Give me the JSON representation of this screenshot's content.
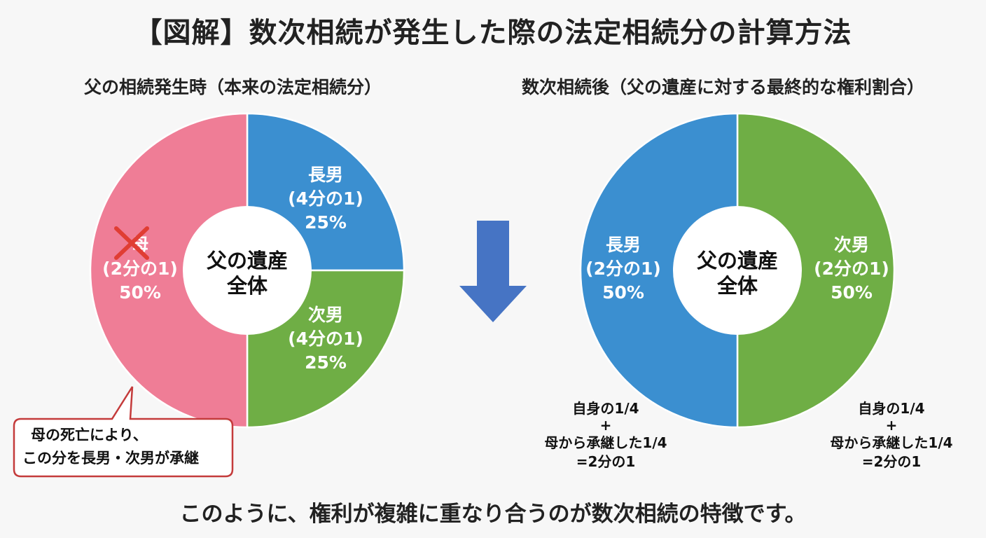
{
  "page": {
    "title": "【図解】数次相続が発生した際の法定相続分の計算方法",
    "footer": "このように、権利が複雑に重なり合うのが数次相続の特徴です。"
  },
  "colors": {
    "pink": "#ef7d96",
    "blue": "#3b8fd0",
    "green": "#6fae45",
    "arrow": "#4674c4",
    "cross": "#e03d33",
    "callout_border": "#c43b3b"
  },
  "chart_data": [
    {
      "type": "pie",
      "title": "父の相続発生時（本来の法定相続分）",
      "center_label": [
        "父の遺産",
        "全体"
      ],
      "slices": [
        {
          "name": "長男",
          "fraction_text": "(4分の1)",
          "percent_text": "25%",
          "value": 25,
          "color": "#3b8fd0"
        },
        {
          "name": "次男",
          "fraction_text": "(4分の1)",
          "percent_text": "25%",
          "value": 25,
          "color": "#6fae45"
        },
        {
          "name": "母",
          "fraction_text": "(2分の1)",
          "percent_text": "50%",
          "value": 50,
          "color": "#ef7d96",
          "crossed_out": true
        }
      ],
      "callout": [
        "母の死亡により、",
        "この分を長男・次男が承継"
      ]
    },
    {
      "type": "pie",
      "title": "数次相続後（父の遺産に対する最終的な権利割合）",
      "center_label": [
        "父の遺産",
        "全体"
      ],
      "slices": [
        {
          "name": "次男",
          "fraction_text": "(2分の1)",
          "percent_text": "50%",
          "value": 50,
          "color": "#6fae45"
        },
        {
          "name": "長男",
          "fraction_text": "(2分の1)",
          "percent_text": "50%",
          "value": 50,
          "color": "#3b8fd0"
        }
      ],
      "notes": {
        "長男": [
          "自身の1/4",
          "+",
          "母から承継した1/4",
          "=2分の1"
        ],
        "次男": [
          "自身の1/4",
          "+",
          "母から承継した1/4",
          "=2分の1"
        ]
      }
    }
  ]
}
